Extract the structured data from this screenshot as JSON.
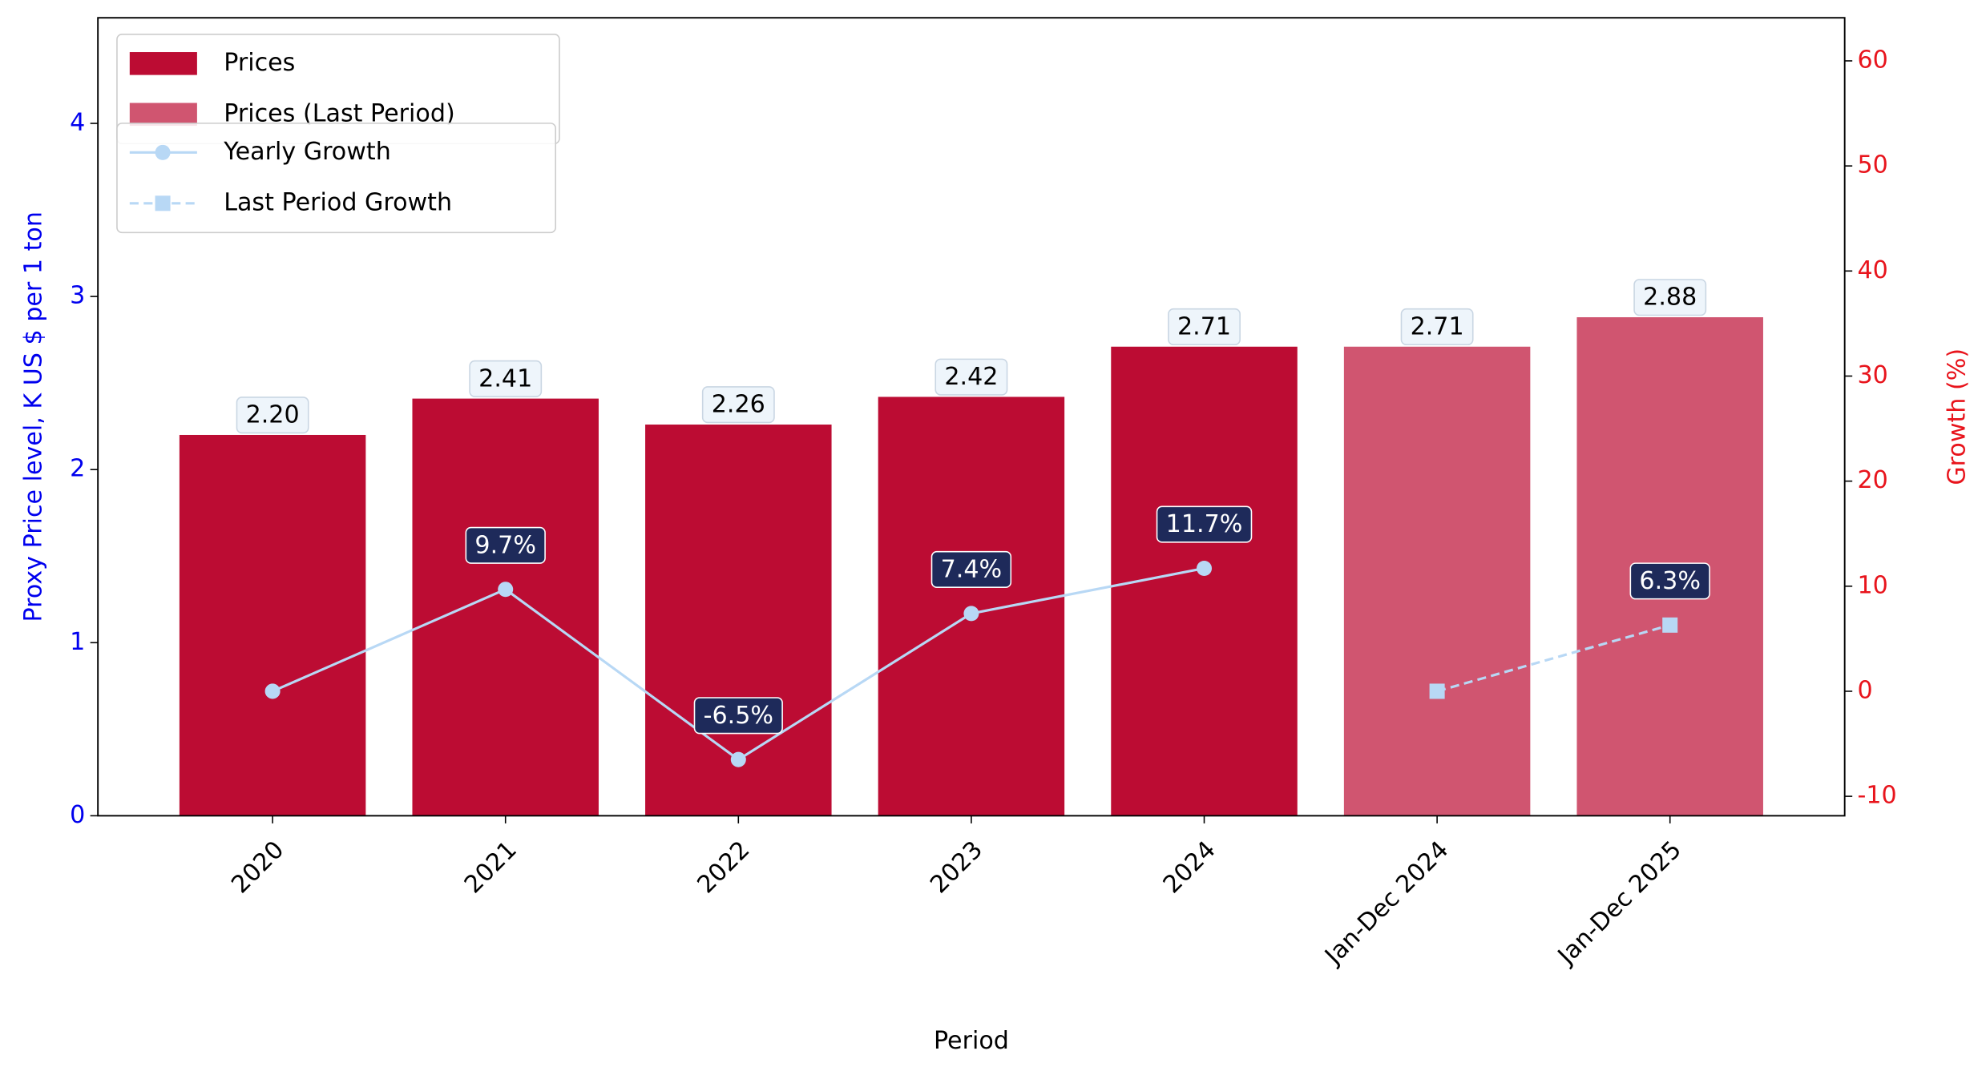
{
  "chart_data": {
    "type": "bar",
    "x_label": "Period",
    "y_label": "Proxy Price level, K US $ per 1 ton",
    "y2_label": "Growth (%)",
    "categories": [
      "2020",
      "2021",
      "2022",
      "2023",
      "2024",
      "Jan-Dec 2024",
      "Jan-Dec 2025"
    ],
    "series": [
      {
        "name": "Prices",
        "type": "bar",
        "color": "#bc0c33",
        "values": [
          2.2,
          2.41,
          2.26,
          2.42,
          2.71,
          null,
          null
        ],
        "value_labels": [
          "2.20",
          "2.41",
          "2.26",
          "2.42",
          "2.71",
          null,
          null
        ]
      },
      {
        "name": "Prices (Last Period)",
        "type": "bar",
        "color": "#d05570",
        "values": [
          null,
          null,
          null,
          null,
          null,
          2.71,
          2.88
        ],
        "value_labels": [
          null,
          null,
          null,
          null,
          null,
          "2.71",
          "2.88"
        ]
      },
      {
        "name": "Yearly Growth",
        "type": "line",
        "axis": "y2",
        "color": "#b8d8f5",
        "marker": "circle",
        "dash": false,
        "values": [
          0,
          9.7,
          -6.5,
          7.4,
          11.7,
          null,
          null
        ],
        "value_labels": [
          null,
          "9.7%",
          "-6.5%",
          "7.4%",
          "11.7%",
          null,
          null
        ]
      },
      {
        "name": "Last Period Growth",
        "type": "line",
        "axis": "y2",
        "color": "#b8d8f5",
        "marker": "square",
        "dash": true,
        "values": [
          null,
          null,
          null,
          null,
          null,
          0,
          6.3
        ],
        "value_labels": [
          null,
          null,
          null,
          null,
          null,
          null,
          "6.3%"
        ]
      }
    ],
    "ylim": [
      0,
      4.61
    ],
    "yticks": [
      0,
      1,
      2,
      3,
      4
    ],
    "y2lim": [
      -11.85,
      64.1
    ],
    "y2ticks": [
      -10,
      0,
      10,
      20,
      30,
      40,
      50,
      60
    ],
    "legend": "upper left"
  }
}
